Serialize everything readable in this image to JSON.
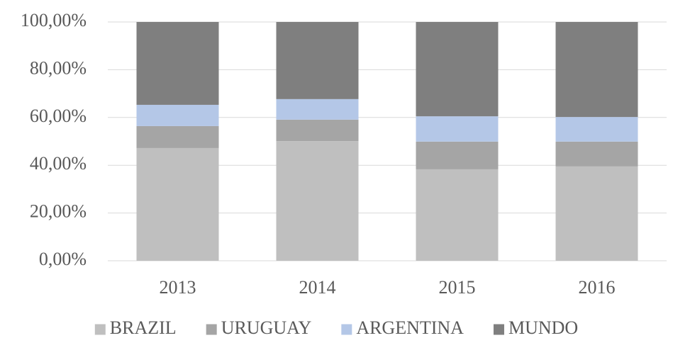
{
  "chart_data": {
    "type": "stacked_bar",
    "categories": [
      "2013",
      "2014",
      "2015",
      "2016"
    ],
    "series": [
      {
        "name": "BRAZIL",
        "color": "#bfbfbf",
        "values": [
          47.2,
          50.1,
          38.3,
          39.5
        ]
      },
      {
        "name": "URUGUAY",
        "color": "#a5a5a5",
        "values": [
          9.2,
          9.0,
          11.6,
          10.4
        ]
      },
      {
        "name": "ARGENTINA",
        "color": "#b4c7e7",
        "values": [
          8.9,
          8.6,
          10.6,
          10.3
        ]
      },
      {
        "name": "MUNDO",
        "color": "#7f7f7f",
        "values": [
          34.7,
          32.3,
          39.5,
          39.8
        ]
      }
    ],
    "ylim": [
      0,
      100
    ],
    "yticks": [
      {
        "value": 0,
        "label": "0,00%"
      },
      {
        "value": 20,
        "label": "20,00%"
      },
      {
        "value": 40,
        "label": "40,00%"
      },
      {
        "value": 60,
        "label": "60,00%"
      },
      {
        "value": 80,
        "label": "80,00%"
      },
      {
        "value": 100,
        "label": "100,00%"
      }
    ],
    "grid": true,
    "legend": "bottom"
  }
}
